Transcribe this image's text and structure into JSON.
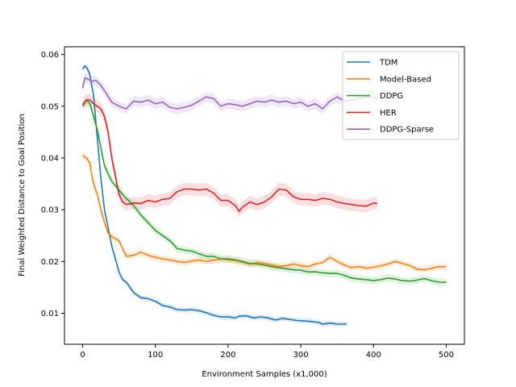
{
  "chart_data": {
    "type": "line",
    "title": "",
    "xlabel": "Environment Samples (x1,000)",
    "ylabel": "Final Weighted Distance to Goal Position",
    "xlim": [
      -25,
      525
    ],
    "ylim": [
      0.004,
      0.0615
    ],
    "x_ticks": [
      0,
      100,
      200,
      300,
      400,
      500
    ],
    "x_tick_labels": [
      "0",
      "100",
      "200",
      "300",
      "400",
      "500"
    ],
    "y_ticks": [
      0.01,
      0.02,
      0.03,
      0.04,
      0.05,
      0.06
    ],
    "y_tick_labels": [
      "0.01",
      "0.02",
      "0.03",
      "0.04",
      "0.05",
      "0.06"
    ],
    "grid": false,
    "legend_position": "top-right",
    "series": [
      {
        "name": "TDM",
        "color": "#1f77b4",
        "points": [
          [
            0,
            0.0572
          ],
          [
            3,
            0.0578
          ],
          [
            6,
            0.0574
          ],
          [
            10,
            0.056
          ],
          [
            15,
            0.052
          ],
          [
            20,
            0.044
          ],
          [
            25,
            0.036
          ],
          [
            30,
            0.03
          ],
          [
            35,
            0.0265
          ],
          [
            40,
            0.023
          ],
          [
            45,
            0.0205
          ],
          [
            50,
            0.018
          ],
          [
            55,
            0.0165
          ],
          [
            60,
            0.016
          ],
          [
            65,
            0.015
          ],
          [
            70,
            0.014
          ],
          [
            80,
            0.013
          ],
          [
            90,
            0.0128
          ],
          [
            100,
            0.0123
          ],
          [
            110,
            0.0115
          ],
          [
            120,
            0.0112
          ],
          [
            130,
            0.0107
          ],
          [
            140,
            0.0106
          ],
          [
            150,
            0.0107
          ],
          [
            160,
            0.0105
          ],
          [
            170,
            0.0101
          ],
          [
            180,
            0.0096
          ],
          [
            190,
            0.0093
          ],
          [
            200,
            0.0093
          ],
          [
            210,
            0.0091
          ],
          [
            215,
            0.0094
          ],
          [
            225,
            0.0095
          ],
          [
            235,
            0.0091
          ],
          [
            245,
            0.0093
          ],
          [
            255,
            0.0091
          ],
          [
            265,
            0.0087
          ],
          [
            275,
            0.009
          ],
          [
            285,
            0.0088
          ],
          [
            295,
            0.0086
          ],
          [
            305,
            0.0085
          ],
          [
            315,
            0.0084
          ],
          [
            325,
            0.0082
          ],
          [
            330,
            0.0079
          ],
          [
            340,
            0.0081
          ],
          [
            350,
            0.0079
          ],
          [
            363,
            0.0079
          ]
        ],
        "band": 0.0005
      },
      {
        "name": "Model-Based",
        "color": "#ff7f0e",
        "points": [
          [
            0,
            0.0405
          ],
          [
            5,
            0.04
          ],
          [
            10,
            0.039
          ],
          [
            12,
            0.037
          ],
          [
            15,
            0.035
          ],
          [
            20,
            0.033
          ],
          [
            25,
            0.03
          ],
          [
            30,
            0.0275
          ],
          [
            35,
            0.0255
          ],
          [
            40,
            0.0248
          ],
          [
            50,
            0.024
          ],
          [
            55,
            0.0225
          ],
          [
            60,
            0.021
          ],
          [
            70,
            0.0212
          ],
          [
            80,
            0.0218
          ],
          [
            90,
            0.0212
          ],
          [
            100,
            0.0208
          ],
          [
            110,
            0.0205
          ],
          [
            120,
            0.0203
          ],
          [
            130,
            0.02
          ],
          [
            140,
            0.0198
          ],
          [
            150,
            0.0201
          ],
          [
            160,
            0.0203
          ],
          [
            170,
            0.02
          ],
          [
            180,
            0.0202
          ],
          [
            190,
            0.0205
          ],
          [
            200,
            0.0203
          ],
          [
            210,
            0.0202
          ],
          [
            220,
            0.0198
          ],
          [
            230,
            0.0195
          ],
          [
            240,
            0.0198
          ],
          [
            250,
            0.0196
          ],
          [
            260,
            0.0193
          ],
          [
            270,
            0.019
          ],
          [
            280,
            0.0192
          ],
          [
            290,
            0.0195
          ],
          [
            300,
            0.0192
          ],
          [
            310,
            0.019
          ],
          [
            320,
            0.0195
          ],
          [
            330,
            0.0198
          ],
          [
            340,
            0.0208
          ],
          [
            350,
            0.02
          ],
          [
            360,
            0.0193
          ],
          [
            370,
            0.0188
          ],
          [
            380,
            0.019
          ],
          [
            390,
            0.0187
          ],
          [
            400,
            0.0189
          ],
          [
            410,
            0.0192
          ],
          [
            420,
            0.0195
          ],
          [
            430,
            0.02
          ],
          [
            440,
            0.0196
          ],
          [
            450,
            0.0192
          ],
          [
            460,
            0.0185
          ],
          [
            470,
            0.0184
          ],
          [
            480,
            0.0187
          ],
          [
            490,
            0.019
          ],
          [
            500,
            0.019
          ]
        ],
        "band": 0.0006
      },
      {
        "name": "DDPG",
        "color": "#2ca02c",
        "points": [
          [
            0,
            0.05
          ],
          [
            5,
            0.0512
          ],
          [
            10,
            0.0505
          ],
          [
            15,
            0.048
          ],
          [
            20,
            0.0455
          ],
          [
            25,
            0.042
          ],
          [
            30,
            0.0385
          ],
          [
            35,
            0.037
          ],
          [
            40,
            0.0355
          ],
          [
            50,
            0.0338
          ],
          [
            60,
            0.0322
          ],
          [
            70,
            0.0308
          ],
          [
            80,
            0.029
          ],
          [
            90,
            0.0275
          ],
          [
            100,
            0.026
          ],
          [
            110,
            0.025
          ],
          [
            120,
            0.024
          ],
          [
            130,
            0.0225
          ],
          [
            140,
            0.0222
          ],
          [
            150,
            0.022
          ],
          [
            160,
            0.0215
          ],
          [
            170,
            0.021
          ],
          [
            180,
            0.021
          ],
          [
            190,
            0.0205
          ],
          [
            200,
            0.0205
          ],
          [
            210,
            0.0203
          ],
          [
            220,
            0.02
          ],
          [
            230,
            0.0196
          ],
          [
            240,
            0.0195
          ],
          [
            250,
            0.0193
          ],
          [
            260,
            0.019
          ],
          [
            270,
            0.0188
          ],
          [
            280,
            0.0186
          ],
          [
            290,
            0.0184
          ],
          [
            300,
            0.0183
          ],
          [
            310,
            0.018
          ],
          [
            320,
            0.018
          ],
          [
            330,
            0.0178
          ],
          [
            340,
            0.0177
          ],
          [
            350,
            0.0177
          ],
          [
            360,
            0.0173
          ],
          [
            370,
            0.0168
          ],
          [
            380,
            0.0166
          ],
          [
            390,
            0.0165
          ],
          [
            400,
            0.0163
          ],
          [
            410,
            0.0165
          ],
          [
            420,
            0.0168
          ],
          [
            430,
            0.0166
          ],
          [
            440,
            0.0163
          ],
          [
            450,
            0.0162
          ],
          [
            460,
            0.0164
          ],
          [
            470,
            0.0167
          ],
          [
            480,
            0.0163
          ],
          [
            490,
            0.016
          ],
          [
            500,
            0.016
          ]
        ],
        "band": 0.0007
      },
      {
        "name": "HER",
        "color": "#d62728",
        "points": [
          [
            0,
            0.0503
          ],
          [
            5,
            0.0512
          ],
          [
            10,
            0.0512
          ],
          [
            15,
            0.0505
          ],
          [
            20,
            0.05
          ],
          [
            25,
            0.0495
          ],
          [
            30,
            0.048
          ],
          [
            35,
            0.045
          ],
          [
            40,
            0.04
          ],
          [
            45,
            0.0365
          ],
          [
            50,
            0.033
          ],
          [
            55,
            0.0315
          ],
          [
            60,
            0.031
          ],
          [
            70,
            0.0313
          ],
          [
            80,
            0.0312
          ],
          [
            90,
            0.0318
          ],
          [
            100,
            0.0315
          ],
          [
            110,
            0.032
          ],
          [
            120,
            0.0322
          ],
          [
            130,
            0.0335
          ],
          [
            140,
            0.034
          ],
          [
            150,
            0.034
          ],
          [
            160,
            0.0338
          ],
          [
            170,
            0.034
          ],
          [
            180,
            0.0332
          ],
          [
            190,
            0.0318
          ],
          [
            200,
            0.0318
          ],
          [
            210,
            0.0308
          ],
          [
            215,
            0.0297
          ],
          [
            220,
            0.0305
          ],
          [
            230,
            0.0315
          ],
          [
            240,
            0.031
          ],
          [
            250,
            0.0315
          ],
          [
            260,
            0.0325
          ],
          [
            270,
            0.034
          ],
          [
            280,
            0.0338
          ],
          [
            290,
            0.0325
          ],
          [
            300,
            0.032
          ],
          [
            310,
            0.032
          ],
          [
            320,
            0.0318
          ],
          [
            330,
            0.0322
          ],
          [
            340,
            0.032
          ],
          [
            350,
            0.0315
          ],
          [
            360,
            0.0312
          ],
          [
            370,
            0.031
          ],
          [
            380,
            0.0308
          ],
          [
            390,
            0.0307
          ],
          [
            400,
            0.0313
          ],
          [
            405,
            0.0312
          ]
        ],
        "band": 0.0012
      },
      {
        "name": "DDPG-Sparse",
        "color": "#9467bd",
        "points": [
          [
            0,
            0.0535
          ],
          [
            3,
            0.0555
          ],
          [
            8,
            0.0552
          ],
          [
            12,
            0.0548
          ],
          [
            18,
            0.055
          ],
          [
            25,
            0.054
          ],
          [
            30,
            0.053
          ],
          [
            40,
            0.0508
          ],
          [
            50,
            0.05
          ],
          [
            60,
            0.0495
          ],
          [
            70,
            0.051
          ],
          [
            80,
            0.0508
          ],
          [
            90,
            0.0512
          ],
          [
            100,
            0.0505
          ],
          [
            110,
            0.0508
          ],
          [
            120,
            0.0498
          ],
          [
            130,
            0.0495
          ],
          [
            140,
            0.0498
          ],
          [
            150,
            0.0502
          ],
          [
            160,
            0.051
          ],
          [
            170,
            0.0518
          ],
          [
            180,
            0.0515
          ],
          [
            190,
            0.05
          ],
          [
            200,
            0.0505
          ],
          [
            210,
            0.0503
          ],
          [
            220,
            0.05
          ],
          [
            230,
            0.0505
          ],
          [
            240,
            0.051
          ],
          [
            250,
            0.0508
          ],
          [
            260,
            0.0512
          ],
          [
            270,
            0.0508
          ],
          [
            280,
            0.051
          ],
          [
            290,
            0.0505
          ],
          [
            300,
            0.0508
          ],
          [
            310,
            0.05
          ],
          [
            320,
            0.0505
          ],
          [
            330,
            0.0495
          ],
          [
            340,
            0.051
          ],
          [
            350,
            0.0518
          ],
          [
            360,
            0.051
          ],
          [
            370,
            0.0512
          ],
          [
            380,
            0.0515
          ],
          [
            390,
            0.0518
          ],
          [
            400,
            0.0517
          ],
          [
            405,
            0.0515
          ]
        ],
        "band": 0.001
      }
    ]
  }
}
